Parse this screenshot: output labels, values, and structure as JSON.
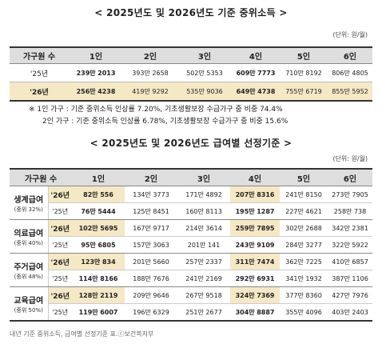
{
  "title1": "< 2025년도 및 2026년도 기준 중위소득 >",
  "unit1": "(단위: 원/월)",
  "table1": {
    "headers": [
      "가구원 수",
      "1인",
      "2인",
      "3인",
      "4인",
      "5인",
      "6인"
    ],
    "rows": [
      {
        "year": "'25년",
        "cells": [
          {
            "man": "239만",
            "won": "2013"
          },
          {
            "man": "393만",
            "won": "2658"
          },
          {
            "man": "502만",
            "won": "5353"
          },
          {
            "man": "609만",
            "won": "7773"
          },
          {
            "man": "710만",
            "won": "8192"
          },
          {
            "man": "806만",
            "won": "4805"
          }
        ]
      },
      {
        "year": "'26년",
        "cells": [
          {
            "man": "256만",
            "won": "4238"
          },
          {
            "man": "419만",
            "won": "9292"
          },
          {
            "man": "535만",
            "won": "9036"
          },
          {
            "man": "649만",
            "won": "4738"
          },
          {
            "man": "755만",
            "won": "6719"
          },
          {
            "man": "855만",
            "won": "5952"
          }
        ]
      }
    ]
  },
  "notes": [
    "※ 1인 가구 : 기준 중위소득 인상률 7.20%, 기초생활보장 수급가구 중 비중 74.4%",
    "2인 가구 : 기준 중위소득 인상률 6.78%, 기초생활보장 수급가구 중 비중 15.6%"
  ],
  "title2": "< 2025년도 및 2026년도 급여별 선정기준 >",
  "unit2": "(단위: 원/월)",
  "table2": {
    "headers": [
      "가구원 수",
      "1인",
      "2인",
      "3인",
      "4인",
      "5인",
      "6인"
    ],
    "groups": [
      {
        "name": "생계급여",
        "sub": "(중위 32%)",
        "rows": [
          {
            "year": "'26년",
            "cells": [
              {
                "man": "82만",
                "won": "556"
              },
              {
                "man": "134만",
                "won": "3773"
              },
              {
                "man": "171만",
                "won": "4892"
              },
              {
                "man": "207만",
                "won": "8316"
              },
              {
                "man": "241만",
                "won": "8150"
              },
              {
                "man": "273만",
                "won": "7905"
              }
            ]
          },
          {
            "year": "'25년",
            "cells": [
              {
                "man": "76만",
                "won": "5444"
              },
              {
                "man": "125만",
                "won": "8451"
              },
              {
                "man": "160만",
                "won": "8113"
              },
              {
                "man": "195만",
                "won": "1287"
              },
              {
                "man": "227만",
                "won": "4621"
              },
              {
                "man": "258만",
                "won": "738"
              }
            ]
          }
        ]
      },
      {
        "name": "의료급여",
        "sub": "(중위 40%)",
        "rows": [
          {
            "year": "'26년",
            "cells": [
              {
                "man": "102만",
                "won": "5695"
              },
              {
                "man": "167만",
                "won": "9717"
              },
              {
                "man": "214만",
                "won": "3614"
              },
              {
                "man": "259만",
                "won": "7895"
              },
              {
                "man": "302만",
                "won": "2688"
              },
              {
                "man": "342만",
                "won": "2381"
              }
            ]
          },
          {
            "year": "'25년",
            "cells": [
              {
                "man": "95만",
                "won": "6805"
              },
              {
                "man": "157만",
                "won": "3063"
              },
              {
                "man": "201만",
                "won": "141"
              },
              {
                "man": "243만",
                "won": "9109"
              },
              {
                "man": "284만",
                "won": "3277"
              },
              {
                "man": "322만",
                "won": "5922"
              }
            ]
          }
        ]
      },
      {
        "name": "주거급여",
        "sub": "(중위 48%)",
        "rows": [
          {
            "year": "'26년",
            "cells": [
              {
                "man": "123만",
                "won": "834"
              },
              {
                "man": "201만",
                "won": "5660"
              },
              {
                "man": "257만",
                "won": "2337"
              },
              {
                "man": "311만",
                "won": "7474"
              },
              {
                "man": "362만",
                "won": "7225"
              },
              {
                "man": "410만",
                "won": "6857"
              }
            ]
          },
          {
            "year": "'25년",
            "cells": [
              {
                "man": "114만",
                "won": "8166"
              },
              {
                "man": "188만",
                "won": "7676"
              },
              {
                "man": "241만",
                "won": "2169"
              },
              {
                "man": "292만",
                "won": "6931"
              },
              {
                "man": "341만",
                "won": "1932"
              },
              {
                "man": "387만",
                "won": "1106"
              }
            ]
          }
        ]
      },
      {
        "name": "교육급여",
        "sub": "(중위 50%)",
        "rows": [
          {
            "year": "'26년",
            "cells": [
              {
                "man": "128만",
                "won": "2119"
              },
              {
                "man": "209만",
                "won": "9646"
              },
              {
                "man": "267만",
                "won": "9518"
              },
              {
                "man": "324만",
                "won": "7369"
              },
              {
                "man": "377만",
                "won": "8360"
              },
              {
                "man": "427만",
                "won": "7976"
              }
            ]
          },
          {
            "year": "'25년",
            "cells": [
              {
                "man": "119만",
                "won": "6007"
              },
              {
                "man": "196만",
                "won": "6329"
              },
              {
                "man": "251만",
                "won": "2677"
              },
              {
                "man": "304만",
                "won": "8887"
              },
              {
                "man": "355만",
                "won": "4096"
              },
              {
                "man": "403만",
                "won": "2403"
              }
            ]
          }
        ]
      }
    ]
  },
  "credit": "내년 기준 중위소득, 급여별 선정기준 표.ⓒ보건복지부",
  "colors": {
    "highlight": "#f5e8c4",
    "header": "#dedede"
  }
}
